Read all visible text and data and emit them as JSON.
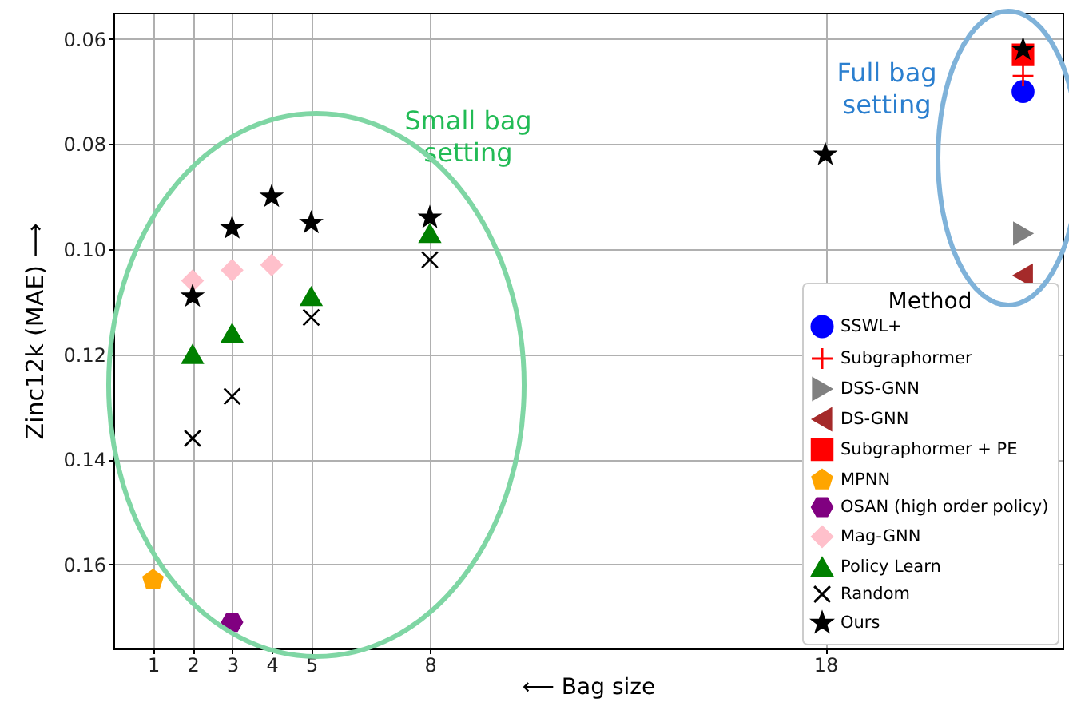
{
  "chart_data": {
    "type": "scatter",
    "xlabel": "⟵ Bag size",
    "ylabel": "Zinc12k (MAE) ⟶",
    "legend_title": "Method",
    "legend": "bottom right",
    "grid": true,
    "xlim": [
      0,
      24
    ],
    "xticks": [
      1,
      2,
      3,
      4,
      5,
      8,
      18
    ],
    "ylim": [
      0.176,
      0.055
    ],
    "yticks": [
      0.06,
      0.08,
      {
        "value": 0.1,
        "label": "0.10"
      },
      0.12,
      0.14,
      0.16
    ],
    "annotations": [
      "Small bag\nsetting",
      "Full bag\nsetting"
    ],
    "series": [
      {
        "name": "SSWL+",
        "color": "#0000ff",
        "marker": "circle",
        "x": [
          23
        ],
        "values": [
          0.07
        ]
      },
      {
        "name": "Subgraphormer",
        "color": "#ff0000",
        "marker": "plus",
        "x": [
          23
        ],
        "values": [
          0.067
        ]
      },
      {
        "name": "DSS-GNN",
        "color": "#808080",
        "marker": "triangle-right",
        "x": [
          23
        ],
        "values": [
          0.097
        ]
      },
      {
        "name": "DS-GNN",
        "color": "#a52a2a",
        "marker": "triangle-left",
        "x": [
          23
        ],
        "values": [
          0.105
        ]
      },
      {
        "name": "Subgraphormer + PE",
        "color": "#ff0000",
        "marker": "square",
        "x": [
          23
        ],
        "values": [
          0.063
        ]
      },
      {
        "name": "MPNN",
        "color": "#ffa500",
        "x": [
          1
        ],
        "values": [
          0.163
        ]
      },
      {
        "name": "OSAN (high order policy)",
        "color": "#800080",
        "x": [
          3
        ],
        "values": [
          0.171
        ]
      },
      {
        "name": "Mag-GNN",
        "color": "#ffc0cb",
        "marker": "diamond",
        "x": [
          2,
          3,
          4
        ],
        "values": [
          0.106,
          0.104,
          0.103
        ]
      },
      {
        "name": "Policy Learn",
        "color": "#008000",
        "marker": "triangle",
        "x": [
          2,
          3,
          5,
          8
        ],
        "values": [
          0.12,
          0.116,
          0.109,
          0.097
        ]
      },
      {
        "name": "Random",
        "color": "#000000",
        "marker": "x",
        "x": [
          2,
          3,
          5,
          8
        ],
        "values": [
          0.136,
          0.128,
          0.113,
          0.102
        ]
      },
      {
        "name": "Ours",
        "color": "#000000",
        "marker": "star",
        "x": [
          2,
          3,
          4,
          5,
          8,
          18,
          23
        ],
        "values": [
          0.109,
          0.096,
          0.09,
          0.095,
          0.094,
          0.082,
          0.062
        ]
      }
    ]
  }
}
